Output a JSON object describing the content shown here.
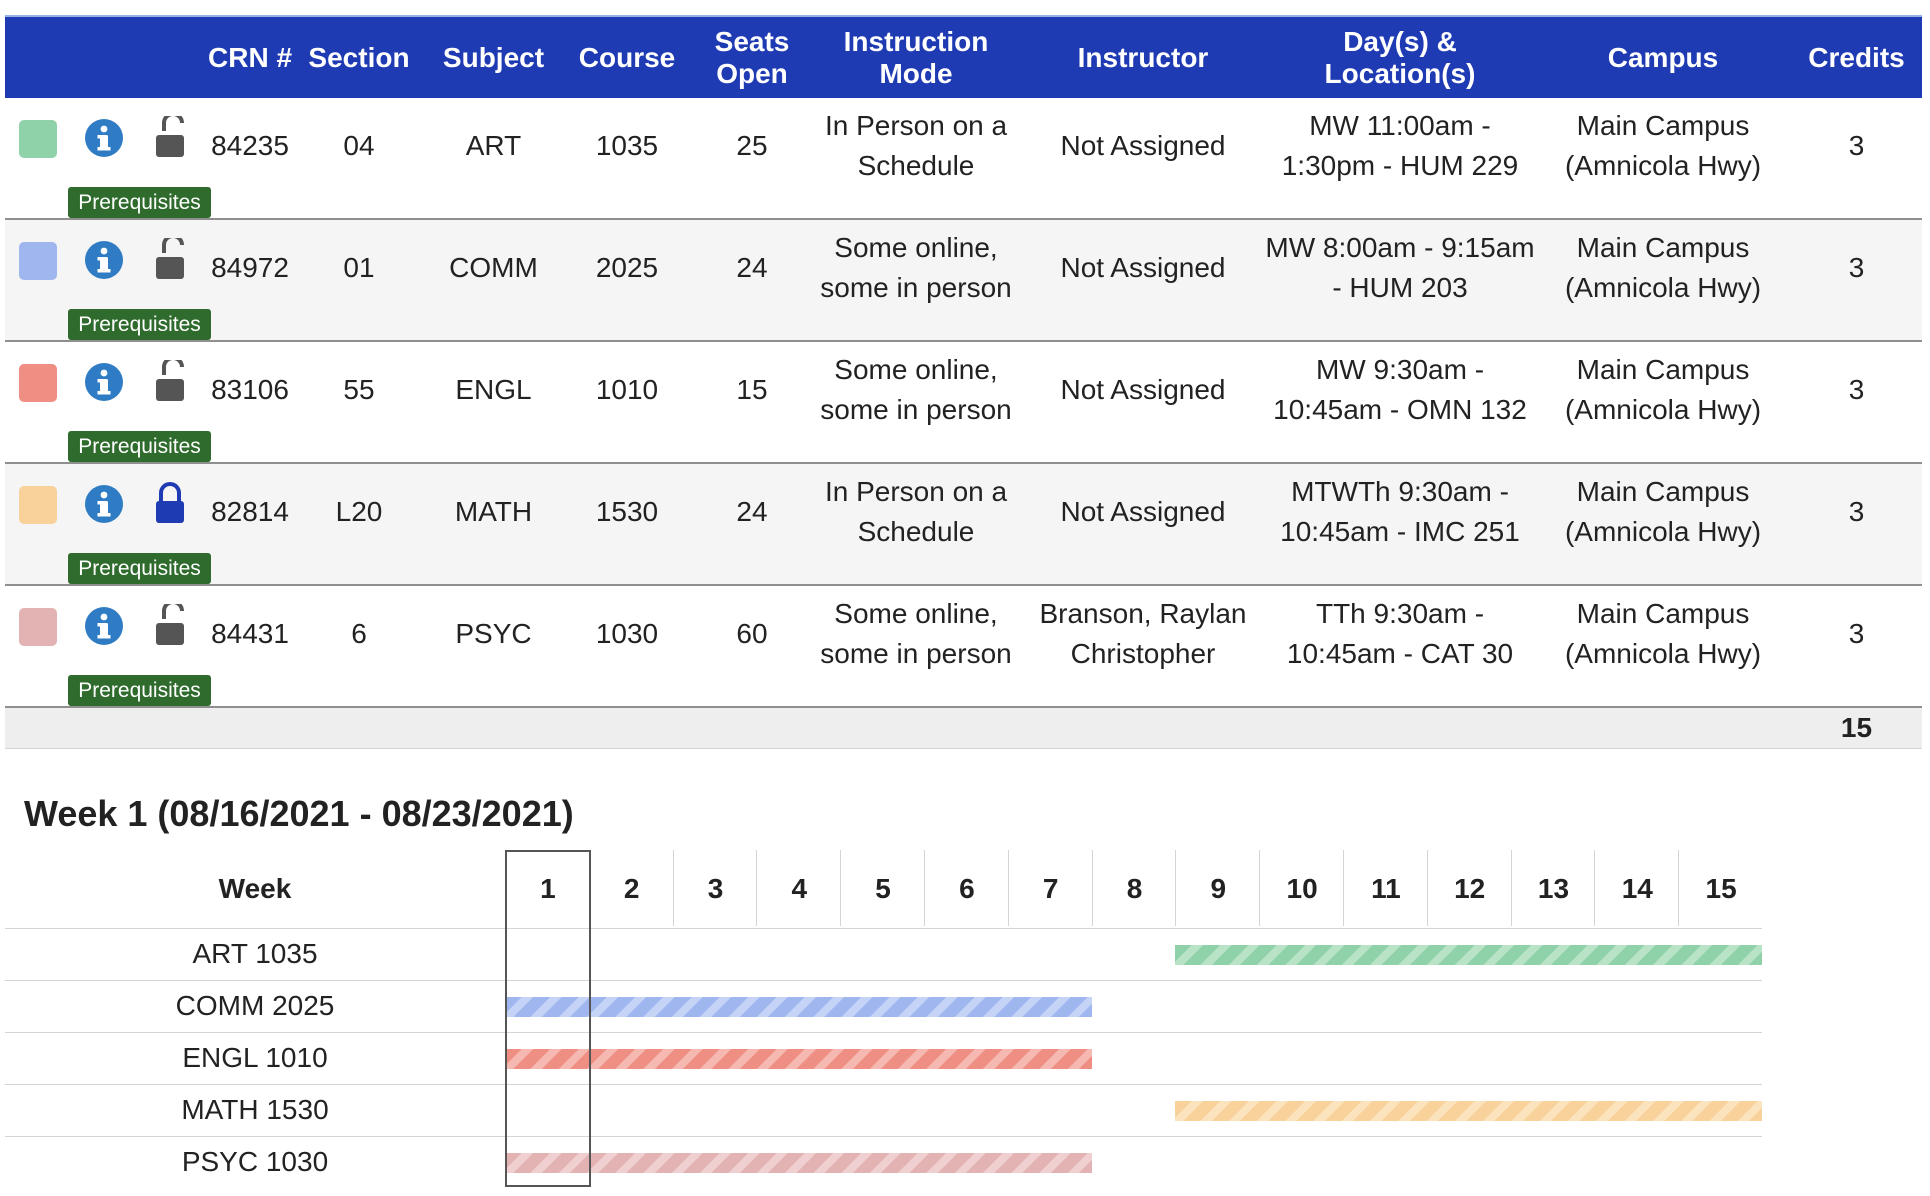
{
  "table": {
    "headers": {
      "crn": "CRN #",
      "section": "Section",
      "subject": "Subject",
      "course": "Course",
      "seats_open": "Seats Open",
      "instruction_mode": "Instruction Mode",
      "instructor": "Instructor",
      "days_locations": "Day(s) & Location(s)",
      "campus": "Campus",
      "credits": "Credits"
    },
    "prereq_label": "Prerequisites",
    "rows": [
      {
        "color": "#8fd1a8",
        "locked": false,
        "crn": "84235",
        "section": "04",
        "subject": "ART",
        "course": "1035",
        "seats": "25",
        "mode": "In Person on a Schedule",
        "instructor": "Not Assigned",
        "days": "MW 11:00am - 1:30pm - HUM 229",
        "campus": "Main Campus (Amnicola Hwy)",
        "credits": "3"
      },
      {
        "color": "#9fb6ef",
        "locked": false,
        "crn": "84972",
        "section": "01",
        "subject": "COMM",
        "course": "2025",
        "seats": "24",
        "mode": "Some online, some in person",
        "instructor": "Not Assigned",
        "days": "MW 8:00am - 9:15am - HUM 203",
        "campus": "Main Campus (Amnicola Hwy)",
        "credits": "3"
      },
      {
        "color": "#ef8f84",
        "locked": false,
        "crn": "83106",
        "section": "55",
        "subject": "ENGL",
        "course": "1010",
        "seats": "15",
        "mode": "Some online, some in person",
        "instructor": "Not Assigned",
        "days": "MW 9:30am - 10:45am - OMN 132",
        "campus": "Main Campus (Amnicola Hwy)",
        "credits": "3"
      },
      {
        "color": "#f8d29a",
        "locked": true,
        "crn": "82814",
        "section": "L20",
        "subject": "MATH",
        "course": "1530",
        "seats": "24",
        "mode": "In Person on a Schedule",
        "instructor": "Not Assigned",
        "days": "MTWTh 9:30am - 10:45am - IMC 251",
        "campus": "Main Campus (Amnicola Hwy)",
        "credits": "3"
      },
      {
        "color": "#e3b3b3",
        "locked": false,
        "crn": "84431",
        "section": "6",
        "subject": "PSYC",
        "course": "1030",
        "seats": "60",
        "mode": "Some online, some in person",
        "instructor": "Branson, Raylan Christopher",
        "days": "TTh 9:30am - 10:45am - CAT 30",
        "campus": "Main Campus (Amnicola Hwy)",
        "credits": "3"
      }
    ],
    "total_credits": "15"
  },
  "timeline": {
    "title": "Week 1 (08/16/2021 - 08/23/2021)",
    "week_header": "Week",
    "weeks": [
      "1",
      "2",
      "3",
      "4",
      "5",
      "6",
      "7",
      "8",
      "9",
      "10",
      "11",
      "12",
      "13",
      "14",
      "15"
    ],
    "current_week": 1,
    "courses": [
      {
        "label": "ART 1035",
        "start_week": 9,
        "end_week": 15,
        "color": "#8fd1a8",
        "stripe": "#b8e3c6"
      },
      {
        "label": "COMM 2025",
        "start_week": 1,
        "end_week": 7,
        "color": "#9fb6ef",
        "stripe": "#c4d3f6"
      },
      {
        "label": "ENGL 1010",
        "start_week": 1,
        "end_week": 7,
        "color": "#ef8f84",
        "stripe": "#f6b9b1"
      },
      {
        "label": "MATH 1530",
        "start_week": 9,
        "end_week": 15,
        "color": "#f8d29a",
        "stripe": "#fbe3bd"
      },
      {
        "label": "PSYC 1030",
        "start_week": 1,
        "end_week": 7,
        "color": "#e3b3b3",
        "stripe": "#efcfcf"
      }
    ]
  }
}
